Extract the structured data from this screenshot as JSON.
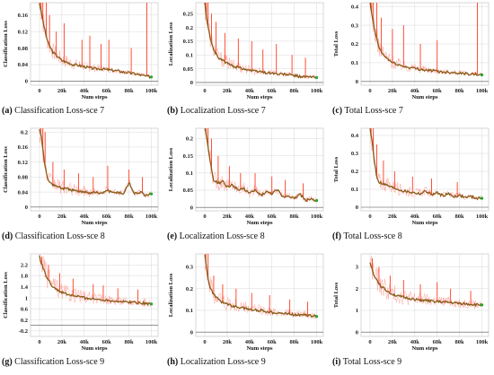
{
  "colors": {
    "smoothed": "#8a5a16",
    "raw": "#ff8a80",
    "spike": "#ff3b1f",
    "grid": "#d8d8d8",
    "final_point": "#1aa82a"
  },
  "chart_data": [
    {
      "type": "line",
      "id": "a",
      "caption_tag": "(a)",
      "caption": "Classification Loss-sce 7",
      "xlabel": "Num steps",
      "ylabel": "Classification Loss",
      "xlim": [
        -8000,
        106000
      ],
      "ylim": [
        -0.01,
        0.19
      ],
      "xticks": [
        0,
        20000,
        40000,
        60000,
        80000,
        100000
      ],
      "xtick_labels": [
        "0",
        "20k",
        "40k",
        "60k",
        "80k",
        "100k"
      ],
      "yticks": [
        0,
        0.04,
        0.08,
        0.12,
        0.16
      ],
      "ytick_labels": [
        "0",
        "0.04",
        "0.08",
        "0.12",
        "0.16"
      ],
      "series": [
        {
          "role": "smoothed",
          "x": [
            0,
            2000,
            5000,
            8000,
            12000,
            16000,
            20000,
            25000,
            30000,
            35000,
            40000,
            45000,
            50000,
            55000,
            60000,
            65000,
            70000,
            75000,
            80000,
            85000,
            90000,
            95000,
            100000
          ],
          "y": [
            0.19,
            0.16,
            0.12,
            0.09,
            0.07,
            0.06,
            0.05,
            0.045,
            0.04,
            0.038,
            0.035,
            0.032,
            0.03,
            0.03,
            0.028,
            0.026,
            0.025,
            0.022,
            0.02,
            0.018,
            0.015,
            0.012,
            0.01
          ]
        },
        {
          "role": "spikes",
          "x": [
            500,
            1500,
            3000,
            6000,
            9000,
            15000,
            22000,
            38000,
            45000,
            55000,
            62000,
            82000,
            96000
          ],
          "y": [
            0.19,
            0.19,
            0.19,
            0.19,
            0.16,
            0.12,
            0.14,
            0.1,
            0.11,
            0.09,
            0.1,
            0.08,
            0.19
          ]
        }
      ]
    },
    {
      "type": "line",
      "id": "b",
      "caption_tag": "(b)",
      "caption": "Localization Loss-sce 7",
      "xlabel": "Num steps",
      "ylabel": "Localization Loss",
      "xlim": [
        -8000,
        106000
      ],
      "ylim": [
        -0.01,
        0.29
      ],
      "xticks": [
        0,
        20000,
        40000,
        60000,
        80000,
        100000
      ],
      "xtick_labels": [
        "0",
        "20k",
        "40k",
        "60k",
        "80k",
        "100k"
      ],
      "yticks": [
        0,
        0.05,
        0.1,
        0.15,
        0.2,
        0.25
      ],
      "ytick_labels": [
        "0",
        "0.05",
        "0.1",
        "0.15",
        "0.2",
        "0.25"
      ],
      "series": [
        {
          "role": "smoothed",
          "x": [
            0,
            2000,
            5000,
            8000,
            12000,
            16000,
            20000,
            25000,
            30000,
            35000,
            40000,
            45000,
            50000,
            55000,
            60000,
            65000,
            70000,
            75000,
            80000,
            85000,
            90000,
            95000,
            100000
          ],
          "y": [
            0.29,
            0.22,
            0.16,
            0.12,
            0.09,
            0.08,
            0.07,
            0.06,
            0.055,
            0.05,
            0.045,
            0.04,
            0.04,
            0.035,
            0.035,
            0.03,
            0.03,
            0.028,
            0.025,
            0.022,
            0.02,
            0.02,
            0.018
          ]
        },
        {
          "role": "spikes",
          "x": [
            500,
            1500,
            3000,
            6000,
            10000,
            18000,
            30000,
            42000,
            52000,
            64000,
            78000,
            90000
          ],
          "y": [
            0.29,
            0.29,
            0.29,
            0.25,
            0.22,
            0.18,
            0.16,
            0.15,
            0.12,
            0.14,
            0.1,
            0.09
          ]
        }
      ]
    },
    {
      "type": "line",
      "id": "c",
      "caption_tag": "(c)",
      "caption": "Total Loss-sce 7",
      "xlabel": "Num steps",
      "ylabel": "Total Loss",
      "xlim": [
        -8000,
        106000
      ],
      "ylim": [
        -0.02,
        0.42
      ],
      "xticks": [
        0,
        20000,
        40000,
        60000,
        80000,
        100000
      ],
      "xtick_labels": [
        "0",
        "20k",
        "40k",
        "60k",
        "80k",
        "100k"
      ],
      "yticks": [
        0,
        0.1,
        0.2,
        0.3,
        0.4
      ],
      "ytick_labels": [
        "0",
        "0.1",
        "0.2",
        "0.3",
        "0.4"
      ],
      "series": [
        {
          "role": "smoothed",
          "x": [
            0,
            2000,
            5000,
            8000,
            12000,
            16000,
            20000,
            25000,
            30000,
            35000,
            40000,
            45000,
            50000,
            55000,
            60000,
            65000,
            70000,
            75000,
            80000,
            85000,
            90000,
            95000,
            100000
          ],
          "y": [
            0.42,
            0.34,
            0.25,
            0.18,
            0.14,
            0.12,
            0.1,
            0.09,
            0.08,
            0.075,
            0.07,
            0.065,
            0.06,
            0.058,
            0.055,
            0.05,
            0.05,
            0.048,
            0.045,
            0.042,
            0.04,
            0.038,
            0.035
          ]
        },
        {
          "role": "spikes",
          "x": [
            500,
            1500,
            3000,
            6000,
            10000,
            20000,
            30000,
            45000,
            60000,
            96000
          ],
          "y": [
            0.42,
            0.42,
            0.42,
            0.42,
            0.34,
            0.28,
            0.3,
            0.2,
            0.22,
            0.42
          ]
        }
      ]
    },
    {
      "type": "line",
      "id": "d",
      "caption_tag": "(d)",
      "caption": "Classification Loss-sce 8",
      "xlabel": "Num steps",
      "ylabel": "Classification Loss",
      "xlim": [
        -8000,
        106000
      ],
      "ylim": [
        -0.01,
        0.21
      ],
      "xticks": [
        0,
        20000,
        40000,
        60000,
        80000,
        100000
      ],
      "xtick_labels": [
        "0",
        "20k",
        "40k",
        "60k",
        "80k",
        "100k"
      ],
      "yticks": [
        0,
        0.04,
        0.08,
        0.12,
        0.16,
        0.2
      ],
      "ytick_labels": [
        "0",
        "0.04",
        "0.08",
        "0.12",
        "0.16",
        "0.2"
      ],
      "series": [
        {
          "role": "smoothed",
          "x": [
            0,
            2000,
            4000,
            6000,
            8000,
            12000,
            16000,
            20000,
            25000,
            30000,
            35000,
            40000,
            45000,
            50000,
            55000,
            60000,
            65000,
            70000,
            75000,
            80000,
            85000,
            90000,
            95000,
            100000
          ],
          "y": [
            0.21,
            0.18,
            0.13,
            0.09,
            0.07,
            0.06,
            0.055,
            0.05,
            0.048,
            0.045,
            0.04,
            0.042,
            0.038,
            0.04,
            0.035,
            0.045,
            0.038,
            0.04,
            0.035,
            0.065,
            0.035,
            0.04,
            0.03,
            0.035
          ]
        },
        {
          "role": "spikes",
          "x": [
            1000,
            3000,
            5000,
            12000,
            22000,
            35000,
            48000,
            61000,
            80000,
            92000
          ],
          "y": [
            0.21,
            0.21,
            0.2,
            0.12,
            0.1,
            0.09,
            0.08,
            0.11,
            0.1,
            0.08
          ]
        }
      ]
    },
    {
      "type": "line",
      "id": "e",
      "caption_tag": "(e)",
      "caption": "Localization Loss-sce 8",
      "xlabel": "Num steps",
      "ylabel": "Localization Loss",
      "xlim": [
        -8000,
        106000
      ],
      "ylim": [
        -0.01,
        0.23
      ],
      "xticks": [
        0,
        20000,
        40000,
        60000,
        80000,
        100000
      ],
      "xtick_labels": [
        "0",
        "20k",
        "40k",
        "60k",
        "80k",
        "100k"
      ],
      "yticks": [
        0,
        0.05,
        0.1,
        0.15,
        0.2
      ],
      "ytick_labels": [
        "0",
        "0.05",
        "0.1",
        "0.15",
        "0.2"
      ],
      "series": [
        {
          "role": "smoothed",
          "x": [
            0,
            2000,
            4000,
            6000,
            8000,
            12000,
            16000,
            20000,
            25000,
            30000,
            35000,
            40000,
            45000,
            50000,
            55000,
            60000,
            65000,
            70000,
            75000,
            80000,
            85000,
            90000,
            95000,
            100000
          ],
          "y": [
            0.23,
            0.2,
            0.15,
            0.11,
            0.08,
            0.07,
            0.075,
            0.06,
            0.065,
            0.05,
            0.055,
            0.04,
            0.05,
            0.035,
            0.045,
            0.04,
            0.05,
            0.03,
            0.035,
            0.025,
            0.04,
            0.02,
            0.025,
            0.02
          ]
        },
        {
          "role": "spikes",
          "x": [
            1000,
            3000,
            6000,
            12000,
            22000,
            32000,
            45000,
            60000,
            72000,
            88000
          ],
          "y": [
            0.23,
            0.23,
            0.2,
            0.15,
            0.12,
            0.1,
            0.1,
            0.09,
            0.08,
            0.07
          ]
        }
      ]
    },
    {
      "type": "line",
      "id": "f",
      "caption_tag": "(f)",
      "caption": "Total Loss-sce 8",
      "xlabel": "Num steps",
      "ylabel": "Total Loss",
      "xlim": [
        -8000,
        106000
      ],
      "ylim": [
        -0.02,
        0.44
      ],
      "xticks": [
        0,
        20000,
        40000,
        60000,
        80000,
        100000
      ],
      "xtick_labels": [
        "0",
        "20k",
        "40k",
        "60k",
        "80k",
        "100k"
      ],
      "yticks": [
        0,
        0.1,
        0.2,
        0.3,
        0.4
      ],
      "ytick_labels": [
        "0",
        "0.1",
        "0.2",
        "0.3",
        "0.4"
      ],
      "series": [
        {
          "role": "smoothed",
          "x": [
            0,
            2000,
            4000,
            6000,
            8000,
            12000,
            16000,
            20000,
            25000,
            30000,
            35000,
            40000,
            45000,
            50000,
            55000,
            60000,
            65000,
            70000,
            75000,
            80000,
            85000,
            90000,
            95000,
            100000
          ],
          "y": [
            0.44,
            0.36,
            0.25,
            0.17,
            0.14,
            0.13,
            0.12,
            0.11,
            0.1,
            0.09,
            0.085,
            0.08,
            0.075,
            0.09,
            0.07,
            0.08,
            0.065,
            0.075,
            0.06,
            0.065,
            0.055,
            0.06,
            0.05,
            0.05
          ]
        },
        {
          "role": "spikes",
          "x": [
            1000,
            3000,
            6000,
            12000,
            22000,
            38000,
            55000,
            78000
          ],
          "y": [
            0.44,
            0.44,
            0.35,
            0.26,
            0.2,
            0.17,
            0.16,
            0.14
          ]
        }
      ]
    },
    {
      "type": "line",
      "id": "g",
      "caption_tag": "(g)",
      "caption": "Classification Loss-sce 9",
      "xlabel": "Num steps",
      "ylabel": "Classification Loss",
      "xlim": [
        -8000,
        106000
      ],
      "ylim": [
        -0.4,
        2.6
      ],
      "xticks": [
        0,
        20000,
        40000,
        60000,
        80000,
        100000
      ],
      "xtick_labels": [
        "0",
        "20k",
        "40k",
        "60k",
        "80k",
        "100k"
      ],
      "yticks": [
        -0.2,
        0.2,
        0.6,
        1,
        1.4,
        1.8,
        2.2
      ],
      "ytick_labels": [
        "-0.2",
        "0.2",
        "0.6",
        "1",
        "1.4",
        "1.8",
        "2.2"
      ],
      "series": [
        {
          "role": "smoothed",
          "x": [
            0,
            3000,
            6000,
            10000,
            15000,
            20000,
            25000,
            30000,
            35000,
            40000,
            45000,
            50000,
            55000,
            60000,
            65000,
            70000,
            75000,
            80000,
            85000,
            90000,
            95000,
            100000
          ],
          "y": [
            2.5,
            2.1,
            1.8,
            1.5,
            1.3,
            1.2,
            1.12,
            1.08,
            1.05,
            1.0,
            0.98,
            0.95,
            0.94,
            0.92,
            0.9,
            0.88,
            0.86,
            0.85,
            0.84,
            0.82,
            0.8,
            0.78
          ]
        },
        {
          "role": "spikes",
          "x": [
            2000,
            8000,
            18000,
            30000,
            48000,
            57000,
            70000,
            88000
          ],
          "y": [
            2.5,
            2.2,
            1.9,
            1.7,
            1.5,
            1.45,
            1.35,
            1.3
          ]
        }
      ]
    },
    {
      "type": "line",
      "id": "h",
      "caption_tag": "(h)",
      "caption": "Localization Loss-sce 9",
      "xlabel": "Num steps",
      "ylabel": "Localization Loss",
      "xlim": [
        -8000,
        106000
      ],
      "ylim": [
        -0.02,
        0.36
      ],
      "xticks": [
        0,
        20000,
        40000,
        60000,
        80000,
        100000
      ],
      "xtick_labels": [
        "0",
        "20k",
        "40k",
        "60k",
        "80k",
        "100k"
      ],
      "yticks": [
        0,
        0.1,
        0.2,
        0.3
      ],
      "ytick_labels": [
        "0",
        "0.1",
        "0.2",
        "0.3"
      ],
      "series": [
        {
          "role": "smoothed",
          "x": [
            0,
            2000,
            4000,
            7000,
            10000,
            15000,
            20000,
            25000,
            30000,
            35000,
            40000,
            45000,
            50000,
            55000,
            60000,
            65000,
            70000,
            75000,
            80000,
            85000,
            90000,
            95000,
            100000
          ],
          "y": [
            0.36,
            0.28,
            0.22,
            0.18,
            0.16,
            0.14,
            0.13,
            0.12,
            0.115,
            0.11,
            0.105,
            0.1,
            0.1,
            0.095,
            0.09,
            0.09,
            0.085,
            0.085,
            0.08,
            0.08,
            0.078,
            0.075,
            0.072
          ]
        },
        {
          "role": "spikes",
          "x": [
            1000,
            3000,
            8000,
            16000,
            28000,
            42000,
            58000,
            76000,
            92000
          ],
          "y": [
            0.36,
            0.36,
            0.26,
            0.22,
            0.2,
            0.18,
            0.17,
            0.15,
            0.14
          ]
        }
      ]
    },
    {
      "type": "line",
      "id": "i",
      "caption_tag": "(i)",
      "caption": "Total Loss-sce 9",
      "xlabel": "Num steps",
      "ylabel": "Total Loss",
      "xlim": [
        -8000,
        106000
      ],
      "ylim": [
        -0.2,
        3.6
      ],
      "xticks": [
        0,
        20000,
        40000,
        60000,
        80000,
        100000
      ],
      "xtick_labels": [
        "0",
        "20k",
        "40k",
        "60k",
        "80k",
        "100k"
      ],
      "yticks": [
        0,
        1,
        2,
        3
      ],
      "ytick_labels": [
        "0",
        "1",
        "2",
        "3"
      ],
      "series": [
        {
          "role": "smoothed",
          "x": [
            0,
            3000,
            6000,
            10000,
            15000,
            20000,
            25000,
            30000,
            35000,
            40000,
            45000,
            50000,
            55000,
            60000,
            65000,
            70000,
            75000,
            80000,
            85000,
            90000,
            95000,
            100000
          ],
          "y": [
            3.2,
            2.7,
            2.4,
            2.1,
            1.9,
            1.75,
            1.65,
            1.6,
            1.55,
            1.5,
            1.48,
            1.45,
            1.42,
            1.4,
            1.38,
            1.36,
            1.34,
            1.32,
            1.3,
            1.28,
            1.26,
            1.25
          ]
        },
        {
          "role": "spikes",
          "x": [
            2000,
            8000,
            18000,
            30000,
            45000,
            60000,
            72000,
            90000
          ],
          "y": [
            3.4,
            3.0,
            2.6,
            2.4,
            2.2,
            2.3,
            2.0,
            1.9
          ]
        }
      ]
    }
  ]
}
